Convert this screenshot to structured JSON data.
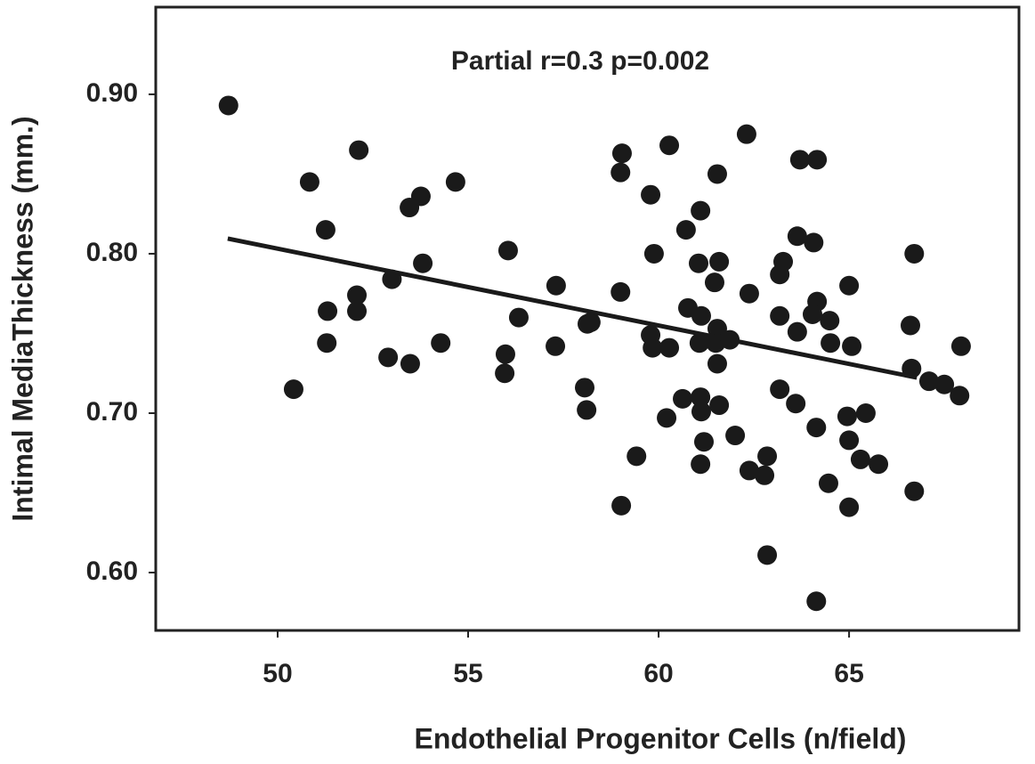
{
  "chart_data": {
    "type": "scatter",
    "annotation": "Partial r=0.3 p=0.002",
    "xlabel": "Endothelial Progenitor Cells (n/field)",
    "ylabel": "Intimal MediaThickness (mm.)",
    "xlim": [
      46.8,
      69.46
    ],
    "ylim": [
      0.5637,
      0.9547
    ],
    "xticks": [
      50,
      55,
      60,
      65
    ],
    "yticks": [
      {
        "value": 0.6,
        "label": "0.60"
      },
      {
        "value": 0.7,
        "label": "0.70"
      },
      {
        "value": 0.8,
        "label": "0.80"
      },
      {
        "value": 0.9,
        "label": "0.90"
      }
    ],
    "color": "#1a1a1a",
    "x": [
      48.71,
      50.42,
      50.84,
      51.26,
      51.31,
      51.29,
      52.13,
      52.08,
      52.08,
      53.0,
      52.9,
      53.46,
      53.76,
      53.81,
      53.48,
      54.28,
      54.67,
      56.05,
      55.98,
      55.96,
      56.33,
      57.31,
      57.29,
      58.13,
      58.22,
      58.06,
      58.11,
      59.0,
      59.0,
      59.04,
      59.02,
      59.42,
      59.79,
      59.88,
      59.79,
      59.84,
      60.28,
      60.28,
      60.21,
      60.72,
      60.77,
      60.63,
      61.1,
      61.05,
      61.12,
      61.07,
      61.1,
      61.12,
      61.19,
      61.1,
      61.54,
      61.59,
      61.47,
      61.54,
      61.5,
      61.54,
      61.59,
      61.87,
      62.01,
      62.31,
      62.38,
      62.38,
      62.78,
      62.85,
      62.85,
      63.27,
      63.18,
      63.18,
      63.18,
      63.64,
      63.64,
      63.6,
      63.71,
      64.16,
      64.07,
      64.16,
      64.04,
      64.49,
      64.51,
      64.14,
      64.46,
      64.14,
      65.0,
      65.07,
      64.95,
      65.0,
      65.0,
      65.44,
      65.3,
      65.77,
      66.71,
      66.61,
      66.64,
      66.71,
      67.1,
      67.5,
      67.94,
      67.9
    ],
    "values": [
      0.893,
      0.715,
      0.845,
      0.815,
      0.764,
      0.744,
      0.865,
      0.774,
      0.764,
      0.784,
      0.735,
      0.829,
      0.836,
      0.794,
      0.731,
      0.744,
      0.845,
      0.802,
      0.737,
      0.725,
      0.76,
      0.78,
      0.742,
      0.756,
      0.757,
      0.716,
      0.702,
      0.776,
      0.851,
      0.863,
      0.642,
      0.673,
      0.837,
      0.8,
      0.749,
      0.741,
      0.868,
      0.741,
      0.697,
      0.815,
      0.766,
      0.709,
      0.827,
      0.794,
      0.761,
      0.744,
      0.71,
      0.701,
      0.682,
      0.668,
      0.85,
      0.795,
      0.782,
      0.753,
      0.744,
      0.731,
      0.705,
      0.746,
      0.686,
      0.875,
      0.775,
      0.664,
      0.661,
      0.673,
      0.611,
      0.795,
      0.787,
      0.761,
      0.715,
      0.811,
      0.751,
      0.706,
      0.859,
      0.859,
      0.807,
      0.77,
      0.762,
      0.758,
      0.744,
      0.691,
      0.656,
      0.582,
      0.78,
      0.742,
      0.698,
      0.683,
      0.641,
      0.7,
      0.671,
      0.668,
      0.8,
      0.755,
      0.728,
      0.651,
      0.72,
      0.718,
      0.742,
      0.711
    ],
    "fit": {
      "x": [
        48.69,
        66.78
      ],
      "values": [
        0.8095,
        0.7223
      ]
    }
  }
}
